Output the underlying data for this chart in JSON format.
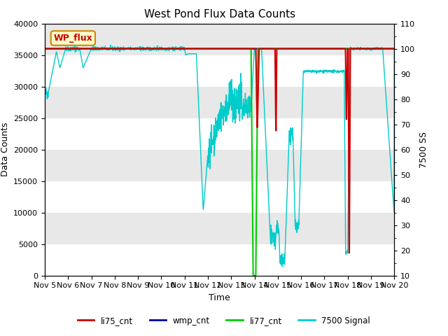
{
  "title": "West Pond Flux Data Counts",
  "xlabel": "Time",
  "ylabel_left": "Data Counts",
  "ylabel_right": "7500 SS",
  "ylim_left": [
    0,
    40000
  ],
  "ylim_right": [
    10,
    110
  ],
  "bg_color": "#f0f0f0",
  "label_box_text": "WP_flux",
  "label_box_facecolor": "#ffffcc",
  "label_box_edgecolor": "#cc8800",
  "label_box_textcolor": "#cc0000",
  "series": {
    "li75_cnt": {
      "color": "#cc0000",
      "lw": 1.5
    },
    "wmp_cnt": {
      "color": "#000099",
      "lw": 1.5
    },
    "li77_cnt": {
      "color": "#00cc00",
      "lw": 1.5
    },
    "7500 Signal": {
      "color": "#00cccc",
      "lw": 1.0
    }
  },
  "x_start": 5,
  "x_end": 20,
  "xtick_labels": [
    "Nov 5",
    "Nov 6",
    "Nov 7",
    "Nov 8",
    "Nov 9",
    "Nov 10",
    "Nov 11",
    "Nov 12",
    "Nov 13",
    "Nov 14",
    "Nov 15",
    "Nov 16",
    "Nov 17",
    "Nov 18",
    "Nov 19",
    "Nov 20"
  ],
  "xtick_positions": [
    5,
    6,
    7,
    8,
    9,
    10,
    11,
    12,
    13,
    14,
    15,
    16,
    17,
    18,
    19,
    20
  ],
  "ytick_left": [
    0,
    5000,
    10000,
    15000,
    20000,
    25000,
    30000,
    35000,
    40000
  ],
  "ytick_right": [
    10,
    20,
    30,
    40,
    50,
    60,
    70,
    80,
    90,
    100,
    110
  ]
}
